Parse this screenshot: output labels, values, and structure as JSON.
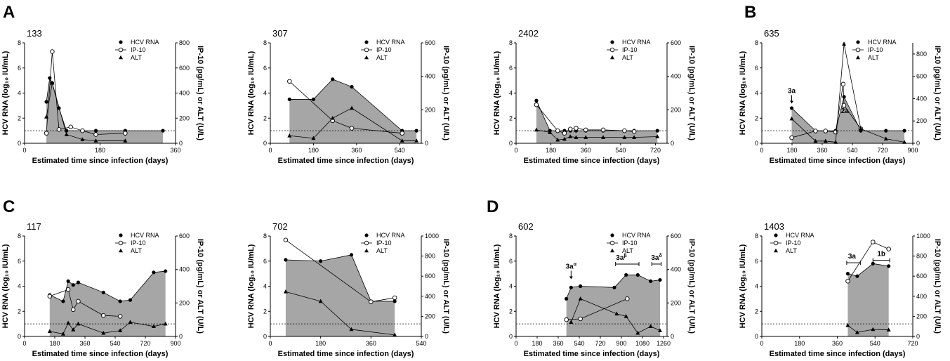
{
  "figure": {
    "panel_letters": [
      "A",
      "B",
      "C",
      "D"
    ]
  },
  "legend_labels": [
    "HCV RNA",
    "IP-10",
    "ALT"
  ],
  "colors": {
    "fill": "#a6a6a6",
    "line": "#000000",
    "open_marker": "#ffffff",
    "lod_line": "#000000"
  },
  "chart_data": [
    {
      "type": "line",
      "patient_id": "133",
      "panel_letter": "A",
      "xlabel": "Estimated time since infection (days)",
      "ylabel_left": "HCV RNA (log₁₀ IU/mL)",
      "ylabel_right": "IP-10 (pg/mL) or ALT (U/L)",
      "xlim": [
        0,
        360
      ],
      "xticks": [
        0,
        180,
        360
      ],
      "ylim_left": [
        0,
        8
      ],
      "yticks_left": [
        0,
        2,
        4,
        6,
        8
      ],
      "ylim_right": [
        0,
        800
      ],
      "yticks_right": [
        0,
        200,
        400,
        600,
        800
      ],
      "lod": 1,
      "series": [
        {
          "name": "HCV RNA",
          "axis": "left",
          "marker": "circle-filled",
          "shaded": true,
          "x": [
            52,
            60,
            66,
            82,
            100,
            138,
            170,
            240,
            330
          ],
          "y": [
            3.3,
            5.2,
            4.8,
            2.8,
            1.0,
            1.0,
            1.0,
            1.0,
            1.0
          ]
        },
        {
          "name": "IP-10",
          "axis": "right",
          "marker": "circle-open",
          "x": [
            52,
            66,
            82,
            110,
            138,
            170,
            240
          ],
          "y": [
            80,
            730,
            110,
            130,
            100,
            70,
            80
          ]
        },
        {
          "name": "ALT",
          "axis": "right",
          "marker": "triangle-filled",
          "x": [
            52,
            66,
            100,
            138,
            170,
            240
          ],
          "y": [
            210,
            480,
            70,
            30,
            20,
            20
          ]
        }
      ],
      "annotations": []
    },
    {
      "type": "line",
      "patient_id": "307",
      "panel_letter": "",
      "xlabel": "Estimated time since infection (days)",
      "ylabel_left": "HCV RNA (log₁₀ IU/mL)",
      "ylabel_right": "IP-10 (pg/mL) or ALT (U/L)",
      "xlim": [
        0,
        630
      ],
      "xticks": [
        0,
        180,
        360,
        540
      ],
      "ylim_left": [
        0,
        8
      ],
      "yticks_left": [
        0,
        2,
        4,
        6,
        8
      ],
      "ylim_right": [
        0,
        600
      ],
      "yticks_right": [
        0,
        200,
        400,
        600
      ],
      "lod": 1,
      "series": [
        {
          "name": "HCV RNA",
          "axis": "left",
          "marker": "circle-filled",
          "shaded": true,
          "x": [
            80,
            180,
            260,
            340,
            550,
            610
          ],
          "y": [
            3.5,
            3.5,
            5.1,
            4.5,
            1.0,
            1.0
          ]
        },
        {
          "name": "IP-10",
          "axis": "right",
          "marker": "circle-open",
          "x": [
            80,
            260,
            340,
            550
          ],
          "y": [
            370,
            135,
            90,
            60
          ]
        },
        {
          "name": "ALT",
          "axis": "right",
          "marker": "triangle-filled",
          "x": [
            80,
            180,
            260,
            340,
            550,
            610
          ],
          "y": [
            45,
            30,
            150,
            210,
            15,
            15
          ]
        }
      ],
      "annotations": []
    },
    {
      "type": "line",
      "patient_id": "2402",
      "panel_letter": "",
      "xlabel": "Estimated time since infection (days)",
      "ylabel_left": "HCV RNA (log₁₀ IU/mL)",
      "ylabel_right": "IP-10 (pg/mL) or ALT (U/L)",
      "xlim": [
        0,
        780
      ],
      "xticks": [
        0,
        180,
        360,
        540,
        720
      ],
      "ylim_left": [
        0,
        8
      ],
      "yticks_left": [
        0,
        2,
        4,
        6,
        8
      ],
      "ylim_right": [
        0,
        600
      ],
      "yticks_right": [
        0,
        200,
        400,
        600
      ],
      "lod": 1,
      "series": [
        {
          "name": "HCV RNA",
          "axis": "left",
          "marker": "circle-filled",
          "shaded": true,
          "x": [
            105,
            175,
            215,
            250,
            280,
            310,
            360,
            450,
            560,
            610,
            730
          ],
          "y": [
            3.4,
            1.0,
            1.0,
            1.0,
            1.0,
            1.0,
            1.0,
            1.0,
            1.0,
            1.0,
            1.0
          ]
        },
        {
          "name": "IP-10",
          "axis": "right",
          "marker": "circle-open",
          "x": [
            105,
            215,
            250,
            280,
            310,
            360,
            450,
            560,
            610
          ],
          "y": [
            230,
            75,
            60,
            85,
            90,
            80,
            80,
            75,
            70
          ]
        },
        {
          "name": "ALT",
          "axis": "right",
          "marker": "triangle-filled",
          "x": [
            105,
            175,
            215,
            250,
            280,
            310,
            360,
            450,
            560,
            610,
            730
          ],
          "y": [
            80,
            65,
            20,
            25,
            40,
            35,
            35,
            35,
            35,
            35,
            40
          ]
        }
      ],
      "annotations": []
    },
    {
      "type": "line",
      "patient_id": "635",
      "panel_letter": "B",
      "xlabel": "Estimated time since infection (days)",
      "ylabel_left": "HCV RNA (log₁₀ IU/mL)",
      "ylabel_right": "IP-10 (pg/mL) or ALT (U/L)",
      "xlim": [
        0,
        900
      ],
      "xticks": [
        0,
        180,
        360,
        540,
        720,
        900
      ],
      "ylim_left": [
        0,
        8
      ],
      "yticks_left": [
        0,
        2,
        4,
        6,
        8
      ],
      "ylim_right": [
        0,
        900
      ],
      "yticks_right": [
        0,
        200,
        400,
        600,
        800
      ],
      "lod": 1,
      "series": [
        {
          "name": "HCV RNA",
          "axis": "left",
          "marker": "circle-filled",
          "shaded": true,
          "x": [
            178,
            320,
            380,
            440,
            490,
            590,
            740,
            850
          ],
          "y": [
            2.8,
            1.0,
            1.0,
            1.0,
            3.7,
            1.0,
            1.0,
            1.0
          ]
        },
        {
          "name": "IP-10",
          "axis": "right",
          "marker": "circle-open",
          "x": [
            178,
            320,
            380,
            440,
            485,
            490,
            590
          ],
          "y": [
            50,
            110,
            110,
            100,
            530,
            340,
            130
          ]
        },
        {
          "name": "ALT",
          "axis": "right",
          "marker": "triangle-filled",
          "x": [
            178,
            320,
            380,
            440,
            490,
            590,
            740,
            850
          ],
          "y": [
            220,
            20,
            20,
            10,
            890,
            130,
            40,
            10
          ]
        }
      ],
      "annotations": [
        {
          "text": "3a",
          "x": 178,
          "y_left": 4.0,
          "arrow": true
        },
        {
          "text": "2a",
          "x": 495,
          "y_left": 2.4,
          "arrow": false
        }
      ]
    },
    {
      "type": "line",
      "patient_id": "117",
      "panel_letter": "C",
      "xlabel": "Estimated time since infection (days)",
      "ylabel_left": "HCV RNA (log₁₀ IU/mL)",
      "ylabel_right": "IP-10 (pg/mL) or ALT (U/L)",
      "xlim": [
        0,
        900
      ],
      "xticks": [
        0,
        180,
        360,
        540,
        720,
        900
      ],
      "ylim_left": [
        0,
        8
      ],
      "yticks_left": [
        0,
        2,
        4,
        6,
        8
      ],
      "ylim_right": [
        0,
        600
      ],
      "yticks_right": [
        0,
        200,
        400,
        600
      ],
      "lod": 1,
      "series": [
        {
          "name": "HCV RNA",
          "axis": "left",
          "marker": "circle-filled",
          "shaded": true,
          "x": [
            150,
            230,
            260,
            290,
            320,
            470,
            570,
            630,
            770,
            840
          ],
          "y": [
            3.3,
            2.8,
            4.4,
            4.1,
            4.3,
            3.5,
            2.8,
            2.9,
            5.1,
            5.2
          ]
        },
        {
          "name": "IP-10",
          "axis": "right",
          "marker": "circle-open",
          "x": [
            150,
            260,
            290,
            320,
            470,
            570
          ],
          "y": [
            240,
            280,
            160,
            210,
            125,
            120
          ]
        },
        {
          "name": "ALT",
          "axis": "right",
          "marker": "triangle-filled",
          "x": [
            150,
            230,
            260,
            290,
            320,
            470,
            570,
            630,
            770,
            840
          ],
          "y": [
            30,
            15,
            80,
            40,
            75,
            20,
            35,
            85,
            60,
            75
          ]
        }
      ],
      "annotations": []
    },
    {
      "type": "line",
      "patient_id": "702",
      "panel_letter": "",
      "xlabel": "Estimated time since infection (days)",
      "ylabel_left": "HCV RNA (log₁₀ IU/mL)",
      "ylabel_right": "IP-10 (pg/mL) or ALT (U/L)",
      "xlim": [
        0,
        540
      ],
      "xticks": [
        0,
        180,
        360,
        540
      ],
      "ylim_left": [
        0,
        8
      ],
      "yticks_left": [
        0,
        2,
        4,
        6,
        8
      ],
      "ylim_right": [
        0,
        1000
      ],
      "yticks_right": [
        0,
        200,
        400,
        600,
        800,
        1000
      ],
      "lod": 1,
      "series": [
        {
          "name": "HCV RNA",
          "axis": "left",
          "marker": "circle-filled",
          "shaded": true,
          "x": [
            55,
            180,
            290,
            360,
            445
          ],
          "y": [
            6.1,
            6.0,
            6.5,
            2.8,
            2.8
          ]
        },
        {
          "name": "IP-10",
          "axis": "right",
          "marker": "circle-open",
          "x": [
            55,
            360,
            445
          ],
          "y": [
            960,
            345,
            385
          ]
        },
        {
          "name": "ALT",
          "axis": "right",
          "marker": "triangle-filled",
          "x": [
            55,
            180,
            290,
            445
          ],
          "y": [
            445,
            350,
            70,
            15
          ]
        }
      ],
      "annotations": []
    },
    {
      "type": "line",
      "patient_id": "602",
      "panel_letter": "D",
      "xlabel": "Estimated time since infection (days)",
      "ylabel_left": "HCV RNA (log₁₀ IU/mL)",
      "ylabel_right": "IP-10 (pg/mL) or ALT (U/L)",
      "xlim": [
        0,
        1290
      ],
      "xticks": [
        0,
        180,
        360,
        540,
        720,
        900,
        1080,
        1260
      ],
      "ylim_left": [
        0,
        8
      ],
      "yticks_left": [
        0,
        2,
        4,
        6,
        8
      ],
      "ylim_right": [
        0,
        600
      ],
      "yticks_right": [
        0,
        200,
        400,
        600
      ],
      "lod": 1,
      "series": [
        {
          "name": "HCV RNA",
          "axis": "left",
          "marker": "circle-filled",
          "shaded": true,
          "x": [
            430,
            470,
            550,
            840,
            940,
            1040,
            1150,
            1230
          ],
          "y": [
            3.0,
            3.9,
            4.0,
            3.9,
            4.9,
            4.9,
            4.4,
            4.5
          ]
        },
        {
          "name": "IP-10",
          "axis": "right",
          "marker": "circle-open",
          "x": [
            430,
            550,
            950
          ],
          "y": [
            100,
            105,
            225
          ]
        },
        {
          "name": "ALT",
          "axis": "right",
          "marker": "triangle-filled",
          "x": [
            470,
            550,
            860,
            940,
            1040,
            1150,
            1230
          ],
          "y": [
            85,
            225,
            135,
            120,
            20,
            60,
            35
          ]
        }
      ],
      "annotations": [
        {
          "text": "3a",
          "sup": "α",
          "x": 470,
          "y_left": 5.4,
          "arrow": true
        },
        {
          "text": "3a",
          "sup": "β",
          "x": 900,
          "y_left": 6.1,
          "bracket": [
            850,
            1050
          ]
        },
        {
          "text": "3a",
          "sup": "δ",
          "x": 1200,
          "y_left": 6.1,
          "bracket": [
            1160,
            1240
          ]
        }
      ]
    },
    {
      "type": "line",
      "patient_id": "1403",
      "panel_letter": "",
      "xlabel": "Estimated time since infection (days)",
      "ylabel_left": "HCV RNA (log₁₀ IU/mL)",
      "ylabel_right": "IP-10 (pg/mL) or ALT (U/L)",
      "xlim": [
        0,
        720
      ],
      "xticks": [
        0,
        180,
        360,
        540,
        720
      ],
      "ylim_left": [
        0,
        8
      ],
      "yticks_left": [
        0,
        2,
        4,
        6,
        8
      ],
      "ylim_right": [
        0,
        1000
      ],
      "yticks_right": [
        0,
        200,
        400,
        600,
        800,
        1000
      ],
      "lod": 1,
      "series": [
        {
          "name": "HCV RNA",
          "axis": "left",
          "marker": "circle-filled",
          "shaded": true,
          "x": [
            410,
            455,
            530,
            605
          ],
          "y": [
            5.0,
            4.8,
            5.8,
            5.6
          ]
        },
        {
          "name": "IP-10",
          "axis": "right",
          "marker": "circle-open",
          "x": [
            410,
            530,
            605
          ],
          "y": [
            550,
            940,
            870
          ]
        },
        {
          "name": "ALT",
          "axis": "right",
          "marker": "triangle-filled",
          "x": [
            410,
            455,
            530,
            605
          ],
          "y": [
            110,
            40,
            70,
            65
          ]
        }
      ],
      "annotations": [
        {
          "text": "3a",
          "x": 430,
          "y_left": 6.2,
          "bracket": [
            405,
            470
          ]
        },
        {
          "text": "1b",
          "x": 570,
          "y_left": 6.4,
          "bracket": [
            530,
            610
          ]
        }
      ]
    }
  ]
}
